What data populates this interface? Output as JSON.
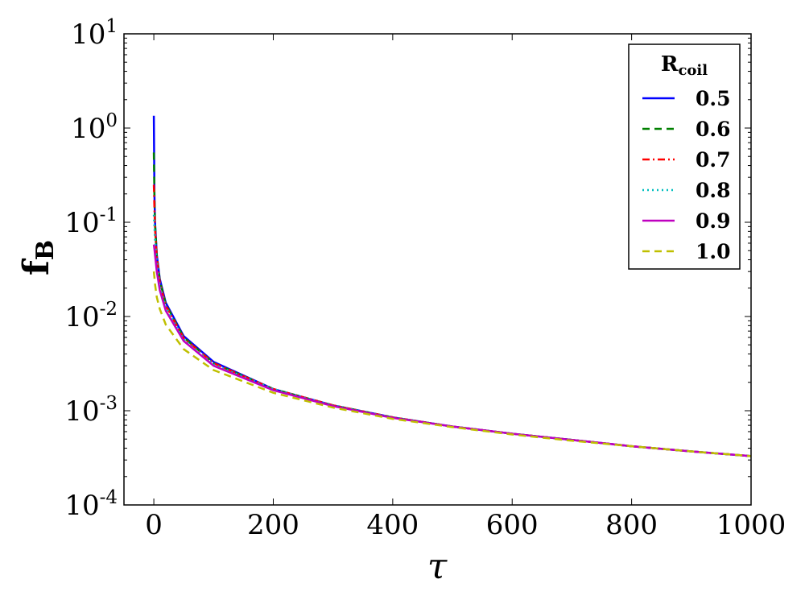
{
  "chart_data": {
    "type": "line",
    "xlabel": "τ",
    "ylabel": {
      "main": "f",
      "sub": "B"
    },
    "xlim": [
      -50,
      1000
    ],
    "ylim": [
      0.0001,
      10
    ],
    "yscale": "log",
    "grid": false,
    "x_ticks": [
      {
        "value": 0,
        "label": "0"
      },
      {
        "value": 200,
        "label": "200"
      },
      {
        "value": 400,
        "label": "400"
      },
      {
        "value": 600,
        "label": "600"
      },
      {
        "value": 800,
        "label": "800"
      },
      {
        "value": 1000,
        "label": "1000"
      }
    ],
    "y_ticks": [
      {
        "value": 10,
        "base": "10",
        "exp": "1"
      },
      {
        "value": 1,
        "base": "10",
        "exp": "0"
      },
      {
        "value": 0.1,
        "base": "10",
        "exp": "-1"
      },
      {
        "value": 0.01,
        "base": "10",
        "exp": "-2"
      },
      {
        "value": 0.001,
        "base": "10",
        "exp": "-3"
      },
      {
        "value": 0.0001,
        "base": "10",
        "exp": "-4"
      }
    ],
    "legend": {
      "title_main": "R",
      "title_sub": "coil",
      "position": "top-right"
    },
    "x": [
      0,
      1,
      2,
      5,
      10,
      20,
      50,
      100,
      200,
      300,
      400,
      500,
      600,
      700,
      800,
      900,
      1000
    ],
    "series": [
      {
        "name": "0.5",
        "color": "#0000ff",
        "dash": "solid",
        "values": [
          1.35,
          0.2,
          0.1,
          0.045,
          0.025,
          0.014,
          0.0062,
          0.0033,
          0.0017,
          0.00114,
          0.00085,
          0.00068,
          0.00057,
          0.00049,
          0.00042,
          0.00037,
          0.00033
        ]
      },
      {
        "name": "0.6",
        "color": "#008000",
        "dash": "dashed",
        "values": [
          0.55,
          0.19,
          0.095,
          0.044,
          0.024,
          0.0135,
          0.006,
          0.0032,
          0.0017,
          0.00114,
          0.00085,
          0.00068,
          0.00057,
          0.00049,
          0.00042,
          0.00037,
          0.00033
        ]
      },
      {
        "name": "0.7",
        "color": "#ff0000",
        "dash": "dashdot",
        "values": [
          0.25,
          0.14,
          0.085,
          0.042,
          0.023,
          0.013,
          0.0059,
          0.0032,
          0.0017,
          0.00114,
          0.00085,
          0.00068,
          0.00057,
          0.00049,
          0.00042,
          0.00037,
          0.00033
        ]
      },
      {
        "name": "0.8",
        "color": "#00bfbf",
        "dash": "dotted",
        "values": [
          0.12,
          0.09,
          0.065,
          0.037,
          0.021,
          0.0125,
          0.0057,
          0.0031,
          0.0017,
          0.00113,
          0.00085,
          0.00068,
          0.00057,
          0.00049,
          0.00042,
          0.00037,
          0.00033
        ]
      },
      {
        "name": "0.9",
        "color": "#bf00bf",
        "dash": "solid",
        "values": [
          0.058,
          0.052,
          0.045,
          0.03,
          0.019,
          0.0115,
          0.0055,
          0.003,
          0.00165,
          0.00112,
          0.00084,
          0.00068,
          0.00057,
          0.00049,
          0.00042,
          0.00037,
          0.00033
        ]
      },
      {
        "name": "1.0",
        "color": "#bfbf00",
        "dash": "dashed",
        "values": [
          0.03,
          0.026,
          0.022,
          0.016,
          0.012,
          0.0082,
          0.0045,
          0.0027,
          0.00155,
          0.00108,
          0.00082,
          0.00067,
          0.00056,
          0.00048,
          0.00042,
          0.00037,
          0.00033
        ]
      }
    ]
  }
}
